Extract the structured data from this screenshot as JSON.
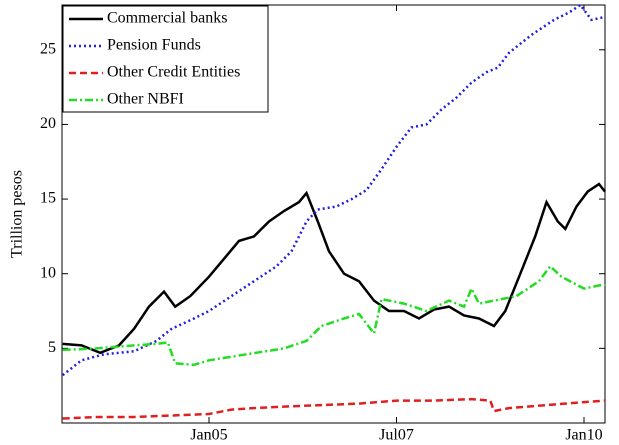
{
  "chart_data": {
    "type": "line",
    "y_label": "Trillion pesos",
    "xlim": [
      2003.04,
      2010.28
    ],
    "xticks": [
      {
        "value": 2005,
        "label": "Jan05"
      },
      {
        "value": 2007.5,
        "label": "Jul07"
      },
      {
        "value": 2010,
        "label": "Jan10"
      }
    ],
    "ylim": [
      0,
      28
    ],
    "yticks": [
      5,
      10,
      15,
      20,
      25
    ],
    "grid": false,
    "legend": "upper-left",
    "series": [
      {
        "name": "Commercial banks",
        "color": "#000000",
        "style": "solid",
        "x": [
          2003.05,
          2003.3,
          2003.55,
          2003.8,
          2004.0,
          2004.2,
          2004.4,
          2004.55,
          2004.75,
          2005.0,
          2005.2,
          2005.4,
          2005.6,
          2005.8,
          2006.0,
          2006.2,
          2006.3,
          2006.45,
          2006.6,
          2006.8,
          2007.0,
          2007.2,
          2007.4,
          2007.6,
          2007.8,
          2008.0,
          2008.2,
          2008.4,
          2008.6,
          2008.8,
          2008.95,
          2009.15,
          2009.35,
          2009.5,
          2009.65,
          2009.75,
          2009.9,
          2010.05,
          2010.2,
          2010.28
        ],
        "values": [
          5.3,
          5.2,
          4.7,
          5.2,
          6.3,
          7.8,
          8.8,
          7.8,
          8.5,
          9.8,
          11,
          12.2,
          12.5,
          13.5,
          14.2,
          14.8,
          15.4,
          13.5,
          11.5,
          10,
          9.5,
          8.2,
          7.5,
          7.5,
          7,
          7.6,
          7.8,
          7.2,
          7,
          6.5,
          7.5,
          10,
          12.5,
          14.8,
          13.5,
          13,
          14.5,
          15.5,
          16,
          15.5
        ]
      },
      {
        "name": "Pension Funds",
        "color": "#1f1fe0",
        "style": "dotted",
        "x": [
          2003.05,
          2003.3,
          2003.6,
          2004.0,
          2004.3,
          2004.5,
          2004.8,
          2005.0,
          2005.3,
          2005.6,
          2005.9,
          2006.1,
          2006.3,
          2006.45,
          2006.7,
          2006.9,
          2007.1,
          2007.3,
          2007.5,
          2007.7,
          2007.9,
          2008.1,
          2008.3,
          2008.5,
          2008.7,
          2008.85,
          2009.0,
          2009.3,
          2009.6,
          2009.8,
          2009.95,
          2010.1,
          2010.28
        ],
        "values": [
          3.2,
          4.2,
          4.6,
          4.8,
          5.5,
          6.3,
          7,
          7.5,
          8.5,
          9.5,
          10.5,
          11.5,
          13.5,
          14.3,
          14.5,
          15,
          15.6,
          17,
          18.5,
          19.8,
          20,
          21,
          21.8,
          22.8,
          23.5,
          23.8,
          24.8,
          26,
          27,
          27.5,
          28,
          27,
          27.2
        ]
      },
      {
        "name": "Other Credit Entities",
        "color": "#e02020",
        "style": "dashed",
        "x": [
          2003.05,
          2003.5,
          2004.0,
          2004.5,
          2005.0,
          2005.3,
          2005.6,
          2006.0,
          2006.5,
          2007.0,
          2007.5,
          2008.0,
          2008.5,
          2008.75,
          2008.8,
          2009.0,
          2009.5,
          2010.0,
          2010.28
        ],
        "values": [
          0.3,
          0.4,
          0.4,
          0.5,
          0.6,
          0.9,
          1.0,
          1.1,
          1.2,
          1.3,
          1.5,
          1.5,
          1.6,
          1.5,
          0.8,
          1.0,
          1.2,
          1.4,
          1.5
        ]
      },
      {
        "name": "Other NBFI",
        "color": "#22dd22",
        "style": "dashdot",
        "x": [
          2003.05,
          2003.5,
          2004.0,
          2004.3,
          2004.45,
          2004.55,
          2004.8,
          2005.0,
          2005.5,
          2006.0,
          2006.3,
          2006.5,
          2006.8,
          2007.0,
          2007.2,
          2007.3,
          2007.6,
          2007.9,
          2008.2,
          2008.4,
          2008.5,
          2008.6,
          2008.9,
          2009.1,
          2009.4,
          2009.55,
          2009.7,
          2010.0,
          2010.28
        ],
        "values": [
          4.9,
          5.0,
          5.2,
          5.3,
          5.4,
          4.0,
          3.9,
          4.2,
          4.6,
          5.0,
          5.5,
          6.5,
          7.0,
          7.3,
          6.0,
          8.3,
          8.0,
          7.5,
          8.2,
          7.8,
          9.0,
          8.0,
          8.3,
          8.5,
          9.5,
          10.5,
          9.8,
          9.0,
          9.3
        ]
      }
    ]
  }
}
